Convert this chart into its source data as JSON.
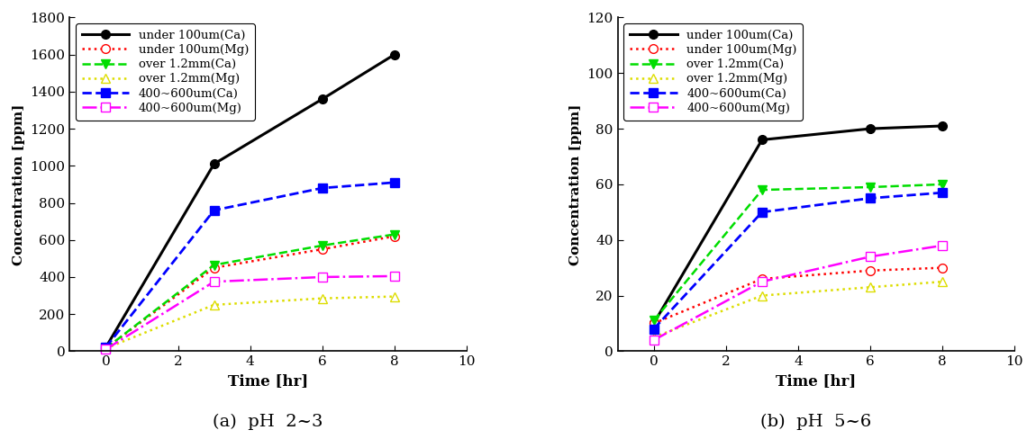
{
  "time": [
    0,
    3,
    6,
    8
  ],
  "panel_a": {
    "title": "(a)  pH  2~3",
    "ylim": [
      0,
      1800
    ],
    "yticks": [
      0,
      200,
      400,
      600,
      800,
      1000,
      1200,
      1400,
      1600,
      1800
    ],
    "series": [
      {
        "label": "under 100um(Ca)",
        "color": "#000000",
        "linestyle": "-",
        "marker": "o",
        "markerfacecolor": "#000000",
        "markersize": 7,
        "linewidth": 2.2,
        "values": [
          20,
          1010,
          1360,
          1600
        ]
      },
      {
        "label": "under 100um(Mg)",
        "color": "#ff0000",
        "linestyle": ":",
        "marker": "o",
        "markerfacecolor": "#ffffff",
        "markersize": 7,
        "linewidth": 1.8,
        "values": [
          15,
          450,
          550,
          620
        ]
      },
      {
        "label": "over 1.2mm(Ca)",
        "color": "#00dd00",
        "linestyle": "--",
        "marker": "v",
        "markerfacecolor": "#00dd00",
        "markersize": 7,
        "linewidth": 1.8,
        "values": [
          15,
          465,
          570,
          630
        ]
      },
      {
        "label": "over 1.2mm(Mg)",
        "color": "#dddd00",
        "linestyle": ":",
        "marker": "^",
        "markerfacecolor": "#ffffff",
        "markersize": 7,
        "linewidth": 1.8,
        "values": [
          15,
          250,
          285,
          295
        ]
      },
      {
        "label": "400~600um(Ca)",
        "color": "#0000ff",
        "linestyle": "--",
        "marker": "s",
        "markerfacecolor": "#0000ff",
        "markersize": 7,
        "linewidth": 2.0,
        "values": [
          20,
          760,
          880,
          910
        ]
      },
      {
        "label": "400~600um(Mg)",
        "color": "#ff00ff",
        "linestyle": "-.",
        "marker": "s",
        "markerfacecolor": "#ffffff",
        "markersize": 7,
        "linewidth": 1.8,
        "values": [
          10,
          375,
          400,
          405
        ]
      }
    ]
  },
  "panel_b": {
    "title": "(b)  pH  5~6",
    "ylim": [
      0,
      120
    ],
    "yticks": [
      0,
      20,
      40,
      60,
      80,
      100,
      120
    ],
    "series": [
      {
        "label": "under 100um(Ca)",
        "color": "#000000",
        "linestyle": "-",
        "marker": "o",
        "markerfacecolor": "#000000",
        "markersize": 7,
        "linewidth": 2.2,
        "values": [
          10,
          76,
          80,
          81
        ]
      },
      {
        "label": "under 100um(Mg)",
        "color": "#ff0000",
        "linestyle": ":",
        "marker": "o",
        "markerfacecolor": "#ffffff",
        "markersize": 7,
        "linewidth": 1.8,
        "values": [
          10,
          26,
          29,
          30
        ]
      },
      {
        "label": "over 1.2mm(Ca)",
        "color": "#00dd00",
        "linestyle": "--",
        "marker": "v",
        "markerfacecolor": "#00dd00",
        "markersize": 7,
        "linewidth": 1.8,
        "values": [
          11,
          58,
          59,
          60
        ]
      },
      {
        "label": "over 1.2mm(Mg)",
        "color": "#dddd00",
        "linestyle": ":",
        "marker": "^",
        "markerfacecolor": "#ffffff",
        "markersize": 7,
        "linewidth": 1.8,
        "values": [
          5,
          20,
          23,
          25
        ]
      },
      {
        "label": "400~600um(Ca)",
        "color": "#0000ff",
        "linestyle": "--",
        "marker": "s",
        "markerfacecolor": "#0000ff",
        "markersize": 7,
        "linewidth": 2.0,
        "values": [
          8,
          50,
          55,
          57
        ]
      },
      {
        "label": "400~600um(Mg)",
        "color": "#ff00ff",
        "linestyle": "-.",
        "marker": "s",
        "markerfacecolor": "#ffffff",
        "markersize": 7,
        "linewidth": 1.8,
        "values": [
          4,
          25,
          34,
          38
        ]
      }
    ]
  },
  "xlabel": "Time [hr]",
  "ylabel": "Concentration [ppm]",
  "xlim": [
    -1,
    10
  ],
  "xticks": [
    0,
    2,
    4,
    6,
    8,
    10
  ]
}
